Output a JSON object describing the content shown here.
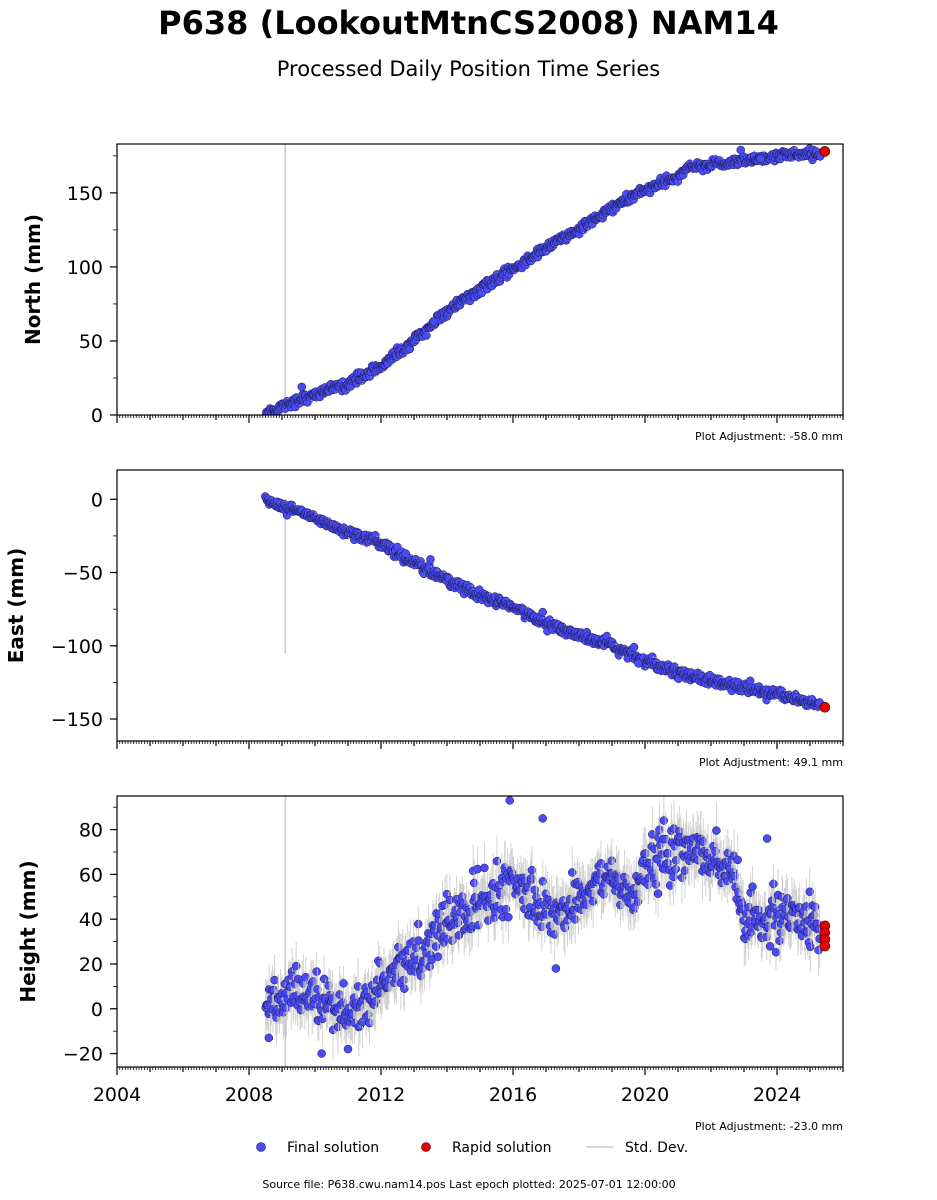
{
  "title": "P638 (LookoutMtnCS2008) NAM14",
  "subtitle": "Processed Daily Position Time Series",
  "source_note": "Source file: P638.cwu.nam14.pos  Last epoch plotted: 2025-07-01 12:00:00",
  "legend": {
    "final": "Final solution",
    "rapid": "Rapid solution",
    "std": "Std. Dev."
  },
  "colors": {
    "final_fill": "#4b4bf5",
    "final_edge": "#1a1a4a",
    "rapid_fill": "#e60000",
    "std_dev": "#c8c8c8"
  },
  "chart_data": [
    {
      "type": "scatter",
      "ylabel": "North (mm)",
      "adjustment": "Plot Adjustment: -58.0 mm",
      "xlim": [
        2004.0,
        2026.0
      ],
      "ylim": [
        0,
        183
      ],
      "yticks": [
        0,
        50,
        100,
        150
      ],
      "ytick_labels": [
        "0",
        "50",
        "100",
        "150"
      ],
      "spike_x": 2009.1,
      "spike_range": [
        0,
        183
      ],
      "noise": 1.6,
      "trend": [
        [
          2008.5,
          1
        ],
        [
          2009.0,
          6
        ],
        [
          2010.0,
          14
        ],
        [
          2011.0,
          21
        ],
        [
          2012.0,
          33
        ],
        [
          2013.0,
          50
        ],
        [
          2014.0,
          70
        ],
        [
          2015.0,
          85
        ],
        [
          2016.0,
          98
        ],
        [
          2017.0,
          113
        ],
        [
          2018.0,
          125
        ],
        [
          2019.0,
          140
        ],
        [
          2020.0,
          152
        ],
        [
          2021.0,
          160
        ],
        [
          2021.2,
          166
        ],
        [
          2022.0,
          169
        ],
        [
          2023.0,
          172
        ],
        [
          2024.0,
          175
        ],
        [
          2025.3,
          177
        ]
      ],
      "outliers": [
        [
          2009.6,
          19
        ],
        [
          2013.6,
          63
        ],
        [
          2022.9,
          179
        ],
        [
          2023.5,
          173
        ]
      ],
      "rapid": [
        [
          2025.45,
          178
        ]
      ]
    },
    {
      "type": "scatter",
      "ylabel": "East (mm)",
      "adjustment": "Plot Adjustment: 49.1 mm",
      "xlim": [
        2004.0,
        2026.0
      ],
      "ylim": [
        -165,
        20
      ],
      "yticks": [
        -150,
        -100,
        -50,
        0
      ],
      "ytick_labels": [
        "−150",
        "−100",
        "−50",
        "0"
      ],
      "spike_x": 2009.1,
      "spike_range": [
        -105,
        0
      ],
      "noise": 1.7,
      "trend": [
        [
          2008.5,
          0
        ],
        [
          2009.0,
          -5
        ],
        [
          2010.0,
          -13
        ],
        [
          2011.0,
          -22
        ],
        [
          2012.0,
          -30
        ],
        [
          2013.0,
          -43
        ],
        [
          2014.0,
          -55
        ],
        [
          2015.0,
          -66
        ],
        [
          2016.0,
          -74
        ],
        [
          2017.0,
          -84
        ],
        [
          2018.0,
          -93
        ],
        [
          2019.0,
          -100
        ],
        [
          2020.0,
          -110
        ],
        [
          2021.0,
          -118
        ],
        [
          2022.0,
          -124
        ],
        [
          2023.0,
          -129
        ],
        [
          2024.0,
          -133
        ],
        [
          2025.3,
          -140
        ]
      ],
      "outliers": [
        [
          2013.5,
          -41
        ],
        [
          2016.9,
          -77
        ],
        [
          2019.8,
          -112
        ]
      ],
      "rapid": [
        [
          2025.45,
          -142
        ]
      ]
    },
    {
      "type": "scatter",
      "ylabel": "Height (mm)",
      "adjustment": "Plot Adjustment: -23.0 mm",
      "xlim": [
        2004.0,
        2026.0
      ],
      "ylim": [
        -26,
        95
      ],
      "yticks": [
        -20,
        0,
        20,
        40,
        60,
        80
      ],
      "ytick_labels": [
        "−20",
        "0",
        "20",
        "40",
        "60",
        "80"
      ],
      "xticks": [
        2004,
        2008,
        2012,
        2016,
        2020,
        2024
      ],
      "xtick_labels": [
        "2004",
        "2008",
        "2012",
        "2016",
        "2020",
        "2024"
      ],
      "spike_x": 2009.1,
      "spike_range": [
        -26,
        95
      ],
      "noise": 5.5,
      "trend": [
        [
          2008.5,
          2
        ],
        [
          2009.0,
          5
        ],
        [
          2010.0,
          3
        ],
        [
          2011.0,
          -2
        ],
        [
          2011.5,
          3
        ],
        [
          2012.3,
          15
        ],
        [
          2013.0,
          22
        ],
        [
          2014.0,
          38
        ],
        [
          2015.0,
          48
        ],
        [
          2016.0,
          56
        ],
        [
          2016.8,
          46
        ],
        [
          2017.5,
          42
        ],
        [
          2018.0,
          50
        ],
        [
          2019.0,
          60
        ],
        [
          2019.5,
          48
        ],
        [
          2020.0,
          62
        ],
        [
          2021.0,
          72
        ],
        [
          2022.0,
          68
        ],
        [
          2022.7,
          60
        ],
        [
          2023.0,
          38
        ],
        [
          2024.0,
          40
        ],
        [
          2025.3,
          38
        ]
      ],
      "outliers": [
        [
          2015.9,
          93
        ],
        [
          2016.9,
          85
        ],
        [
          2017.3,
          18
        ],
        [
          2023.7,
          76
        ],
        [
          2011.0,
          -18
        ],
        [
          2010.2,
          -20
        ],
        [
          2008.6,
          -13
        ]
      ],
      "rapid": [
        [
          2025.45,
          37
        ],
        [
          2025.45,
          34
        ],
        [
          2025.45,
          31
        ],
        [
          2025.45,
          28
        ]
      ]
    }
  ]
}
